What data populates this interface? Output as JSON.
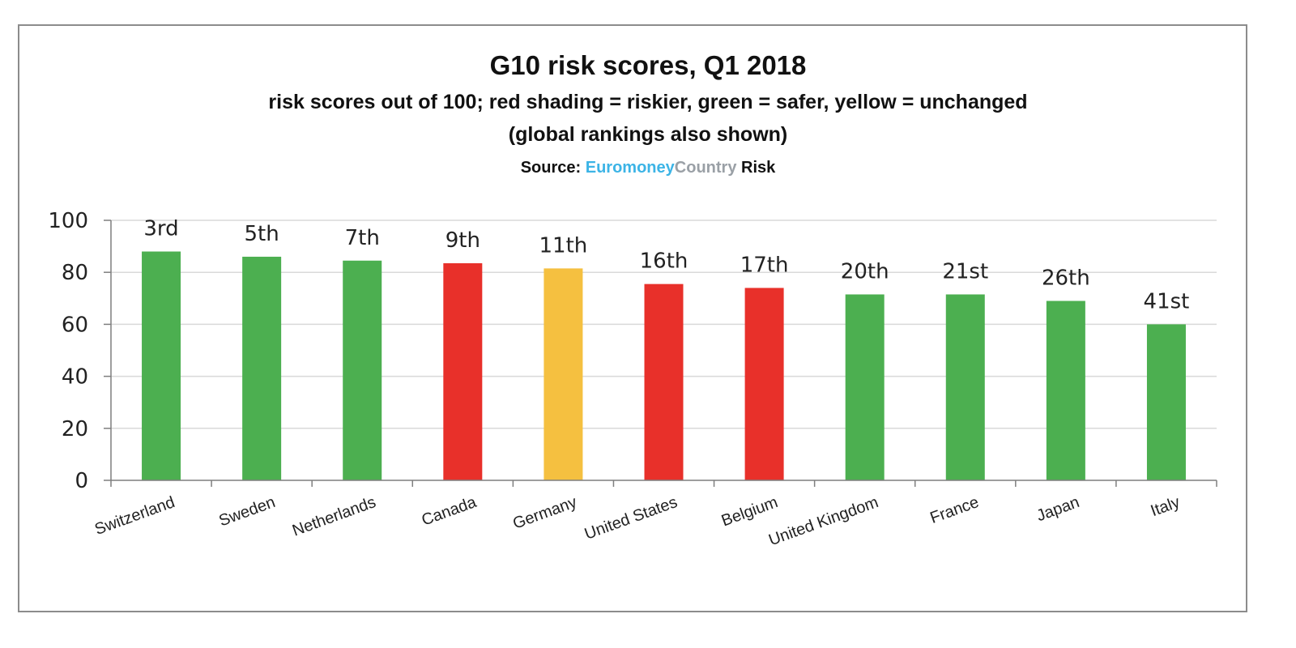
{
  "chart_data": {
    "type": "bar",
    "title": "G10 risk scores, Q1 2018",
    "subtitle": "risk scores out of 100; red shading = riskier, green = safer, yellow = unchanged",
    "subtitle2": "(global rankings also shown)",
    "source": {
      "label": "Source:",
      "brand_part1": "Euromoney",
      "brand_part2": "Country",
      "brand_part3": "Risk"
    },
    "categories": [
      "Switzerland",
      "Sweden",
      "Netherlands",
      "Canada",
      "Germany",
      "United States",
      "Belgium",
      "United Kingdom",
      "France",
      "Japan",
      "Italy"
    ],
    "values": [
      88,
      86,
      84.5,
      83.5,
      81.5,
      75.5,
      74,
      71.5,
      71.5,
      69,
      60
    ],
    "rank_labels": [
      "3rd",
      "5th",
      "7th",
      "9th",
      "11th",
      "16th",
      "17th",
      "20th",
      "21st",
      "26th",
      "41st"
    ],
    "status": [
      "safer",
      "safer",
      "safer",
      "riskier",
      "unchanged",
      "riskier",
      "riskier",
      "safer",
      "safer",
      "safer",
      "safer"
    ],
    "colors": {
      "safer": "#4caf50",
      "riskier": "#e8302a",
      "unchanged": "#f5c040",
      "grid": "#d9d9d9",
      "axis": "#7f7f7f",
      "text": "#222222"
    },
    "xlabel": "",
    "ylabel": "",
    "ylim": [
      0,
      100
    ],
    "yticks": [
      0,
      20,
      40,
      60,
      80,
      100
    ],
    "grid": true,
    "legend": "none"
  }
}
